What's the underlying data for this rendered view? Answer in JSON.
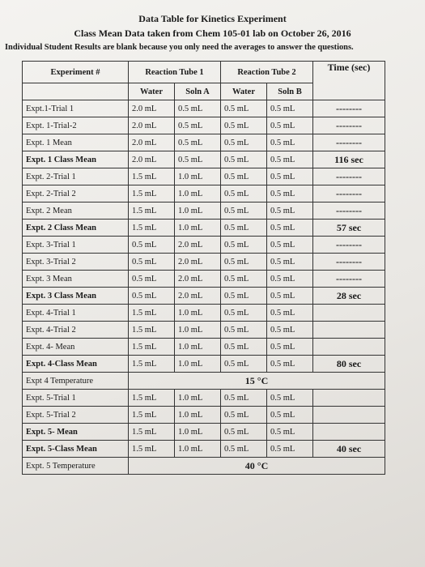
{
  "title": {
    "line1": "Data Table for Kinetics Experiment",
    "line2": "Class Mean Data taken from Chem 105-01 lab on October 26, 2016",
    "line3": "Individual Student Results are blank because you only need the averages to answer the questions."
  },
  "table": {
    "header": [
      "Experiment #",
      "Reaction Tube 1",
      "Reaction Tube 2",
      "Time (sec)"
    ],
    "subheader": [
      "Water",
      "Soln A",
      "Water",
      "Soln B"
    ],
    "rows": [
      [
        "Expt.1-Trial 1",
        "2.0 mL",
        "0.5 mL",
        "0.5 mL",
        "0.5 mL",
        "--------"
      ],
      [
        "Expt. 1-Trial-2",
        "2.0 mL",
        "0.5 mL",
        "0.5 mL",
        "0.5 mL",
        "--------"
      ],
      [
        "Expt. 1 Mean",
        "2.0 mL",
        "0.5 mL",
        "0.5 mL",
        "0.5 mL",
        "--------"
      ],
      [
        "Expt. 1 Class Mean",
        "2.0 mL",
        "0.5 mL",
        "0.5 mL",
        "0.5 mL",
        "116 sec"
      ],
      [
        "Expt. 2-Trial 1",
        "1.5 mL",
        "1.0 mL",
        "0.5 mL",
        "0.5 mL",
        "--------"
      ],
      [
        "Expt. 2-Trial 2",
        "1.5 mL",
        "1.0 mL",
        "0.5 mL",
        "0.5 mL",
        "--------"
      ],
      [
        "Expt. 2 Mean",
        "1.5 mL",
        "1.0 mL",
        "0.5 mL",
        "0.5 mL",
        "--------"
      ],
      [
        "Expt. 2 Class Mean",
        "1.5 mL",
        "1.0 mL",
        "0.5 mL",
        "0.5 mL",
        "57 sec"
      ],
      [
        "Expt. 3-Trial 1",
        "0.5 mL",
        "2.0 mL",
        "0.5 mL",
        "0.5 mL",
        "--------"
      ],
      [
        "Expt. 3-Trial 2",
        "0.5 mL",
        "2.0 mL",
        "0.5 mL",
        "0.5 mL",
        "--------"
      ],
      [
        "Expt. 3 Mean",
        "0.5 mL",
        "2.0 mL",
        "0.5 mL",
        "0.5 mL",
        "--------"
      ],
      [
        "Expt. 3 Class Mean",
        "0.5 mL",
        "2.0 mL",
        "0.5 mL",
        "0.5 mL",
        "28 sec"
      ],
      [
        "Expt. 4-Trial 1",
        "1.5 mL",
        "1.0 mL",
        "0.5 mL",
        "0.5 mL"
      ],
      [
        "Expt. 4-Trial 2",
        "1.5 mL",
        "1.0 mL",
        "0.5 mL",
        "0.5 mL"
      ],
      [
        "Expt. 4- Mean",
        "1.5 mL",
        "1.0 mL",
        "0.5 mL",
        "0.5 mL"
      ],
      [
        "Expt. 4-Class Mean",
        "1.5 mL",
        "1.0 mL",
        "0.5 mL",
        "0.5 mL",
        "80 sec"
      ],
      [
        "Expt 4 Temperature",
        "15 °C"
      ],
      [
        "Expt. 5-Trial 1",
        "1.5 mL",
        "1.0 mL",
        "0.5 mL",
        "0.5 mL"
      ],
      [
        "Expt. 5-Trial 2",
        "1.5 mL",
        "1.0 mL",
        "0.5 mL",
        "0.5 mL"
      ],
      [
        "Expt. 5- Mean",
        "1.5 mL",
        "1.0 mL",
        "0.5 mL",
        "0.5 mL"
      ],
      [
        "Expt. 5-Class Mean",
        "1.5 mL",
        "1.0 mL",
        "0.5 mL",
        "0.5 mL",
        "40 sec"
      ],
      [
        "Expt. 5 Temperature",
        "40 °C"
      ]
    ]
  }
}
